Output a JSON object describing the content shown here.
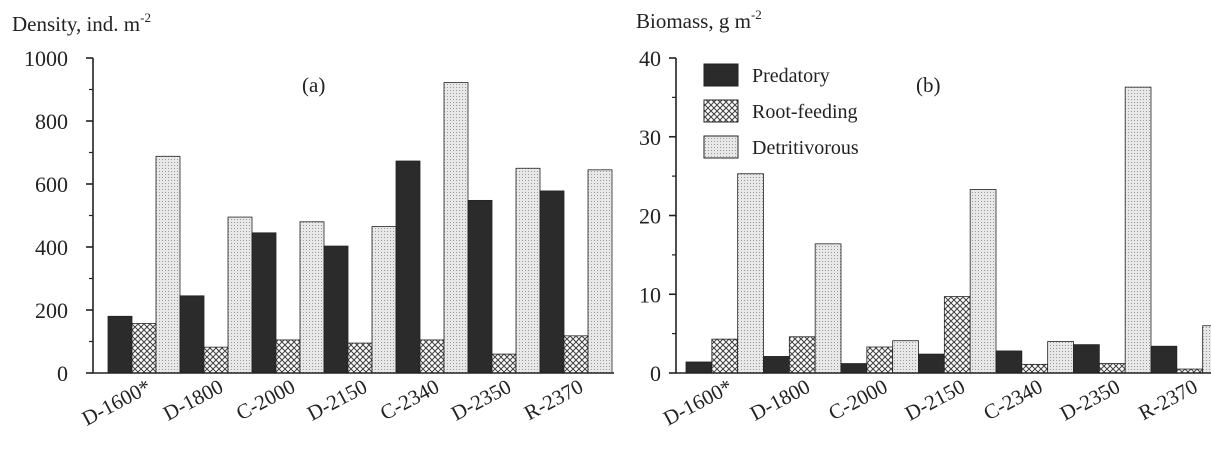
{
  "chart_data": [
    {
      "type": "bar",
      "panel_label": "(a)",
      "title": "Density, ind. m",
      "title_sup": "-2",
      "categories": [
        "D-1600*",
        "D-1800",
        "C-2000",
        "D-2150",
        "C-2340",
        "D-2350",
        "R-2370"
      ],
      "series": [
        {
          "name": "Predatory",
          "values": [
            180,
            245,
            445,
            403,
            673,
            548,
            578
          ]
        },
        {
          "name": "Root-feeding",
          "values": [
            157,
            82,
            105,
            95,
            105,
            60,
            118
          ]
        },
        {
          "name": "Detritivorous",
          "values": [
            688,
            495,
            480,
            465,
            922,
            650,
            645
          ]
        }
      ],
      "ylim": [
        0,
        1000
      ],
      "yticks": [
        "0",
        "200",
        "400",
        "600",
        "800",
        "1000"
      ],
      "yticks_values": [
        0,
        200,
        400,
        600,
        800,
        1000
      ],
      "legend": false,
      "grid": false
    },
    {
      "type": "bar",
      "panel_label": "(b)",
      "title": "Biomass, g m",
      "title_sup": "-2",
      "categories": [
        "D-1600*",
        "D-1800",
        "C-2000",
        "D-2150",
        "C-2340",
        "D-2350",
        "R-2370"
      ],
      "series": [
        {
          "name": "Predatory",
          "values": [
            1.4,
            2.1,
            1.2,
            2.4,
            2.8,
            3.6,
            3.4
          ]
        },
        {
          "name": "Root-feeding",
          "values": [
            4.3,
            4.6,
            3.3,
            9.7,
            1.1,
            1.2,
            0.5
          ]
        },
        {
          "name": "Detritivorous",
          "values": [
            25.3,
            16.4,
            4.1,
            23.3,
            4.0,
            36.3,
            6.0
          ]
        }
      ],
      "ylim": [
        0,
        40
      ],
      "yticks": [
        "0",
        "10",
        "20",
        "30",
        "40"
      ],
      "yticks_values": [
        0,
        10,
        20,
        30,
        40
      ],
      "legend": true,
      "legend_position": "top-left",
      "grid": false
    }
  ],
  "colors": {
    "Predatory": "#2b2b2b",
    "Root-feeding": "crosshatch",
    "Detritivorous": "#e4e4e4"
  }
}
